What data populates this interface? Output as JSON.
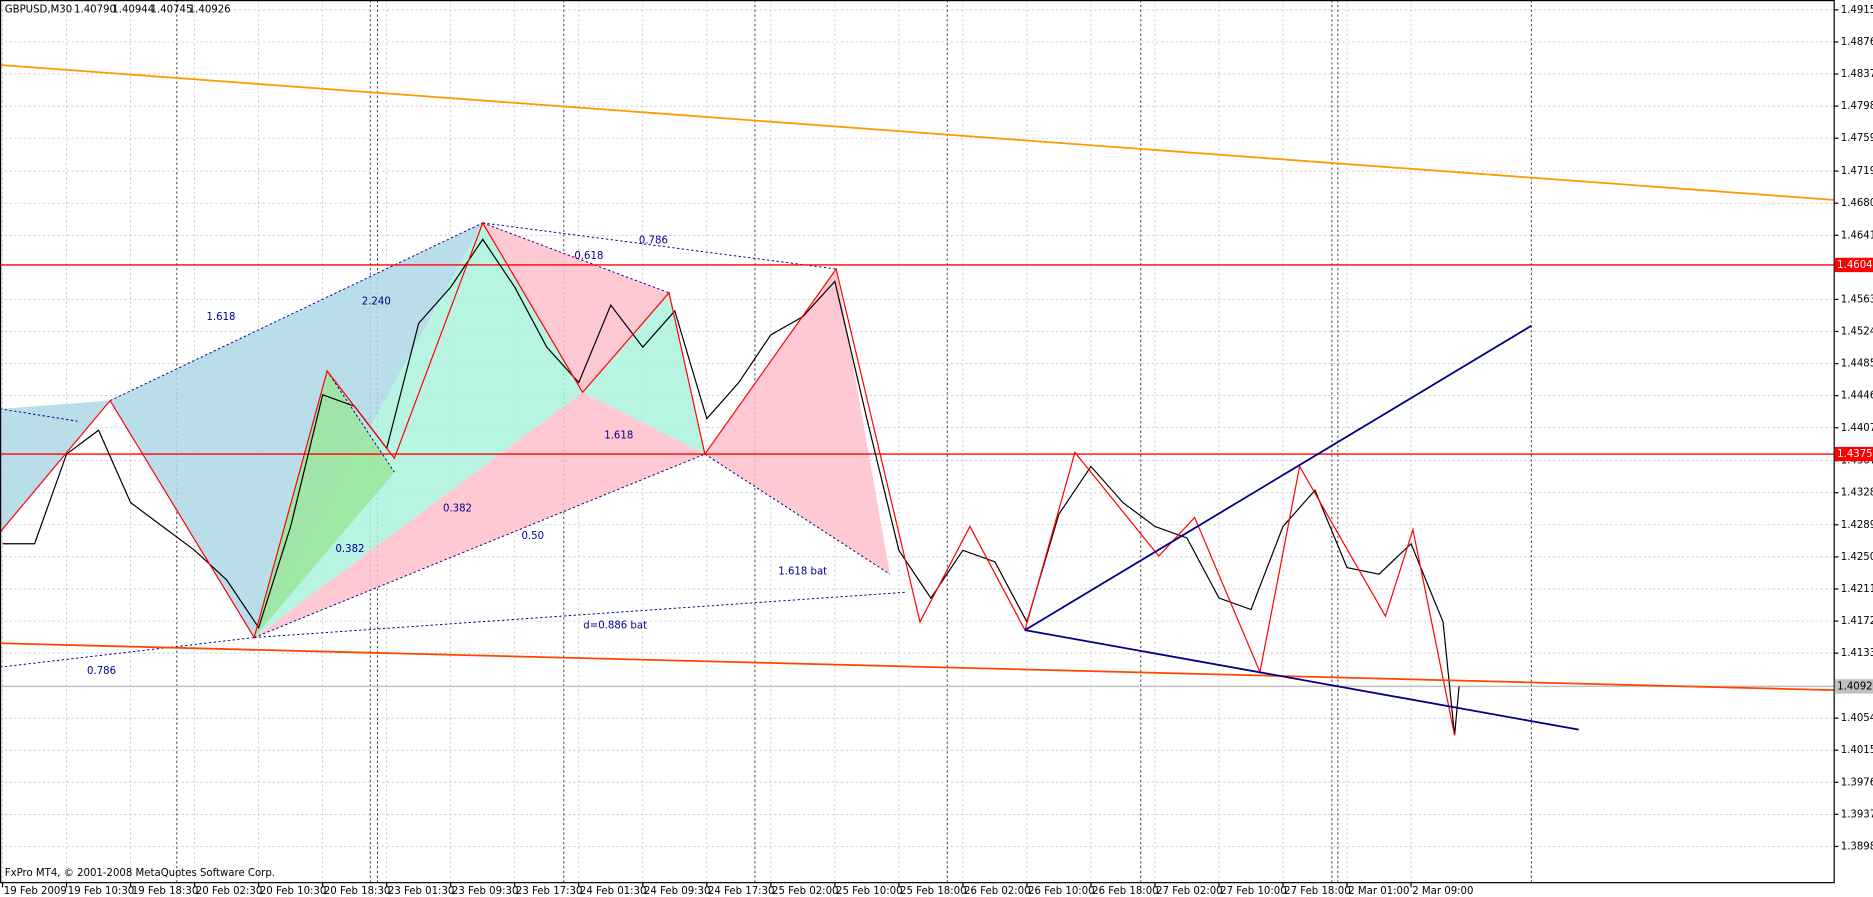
{
  "chart_data": {
    "type": "line",
    "title": "GBPUSD,M30",
    "quote": [
      "1.40790",
      "1.40944",
      "1.40745",
      "1.40926"
    ],
    "footer": "FxPro MT4, © 2001-2008 MetaQuotes Software Corp.",
    "grid": true,
    "xlim": [
      -0.04,
      28.6
    ],
    "ylim": [
      1.3854,
      1.4927
    ],
    "xticks": [
      {
        "value": 0,
        "label": "19 Feb 2009"
      },
      {
        "value": 1,
        "label": "19 Feb 10:30"
      },
      {
        "value": 2,
        "label": "19 Feb 18:30"
      },
      {
        "value": 3,
        "label": "20 Feb 02:30"
      },
      {
        "value": 4,
        "label": "20 Feb 10:30"
      },
      {
        "value": 5,
        "label": "20 Feb 18:30"
      },
      {
        "value": 6,
        "label": "23 Feb 01:30"
      },
      {
        "value": 7,
        "label": "23 Feb 09:30"
      },
      {
        "value": 8,
        "label": "23 Feb 17:30"
      },
      {
        "value": 9,
        "label": "24 Feb 01:30"
      },
      {
        "value": 10,
        "label": "24 Feb 09:30"
      },
      {
        "value": 11,
        "label": "24 Feb 17:30"
      },
      {
        "value": 12,
        "label": "25 Feb 02:00"
      },
      {
        "value": 13,
        "label": "25 Feb 10:00"
      },
      {
        "value": 14,
        "label": "25 Feb 18:00"
      },
      {
        "value": 15,
        "label": "26 Feb 02:00"
      },
      {
        "value": 16,
        "label": "26 Feb 10:00"
      },
      {
        "value": 17,
        "label": "26 Feb 18:00"
      },
      {
        "value": 18,
        "label": "27 Feb 02:00"
      },
      {
        "value": 19,
        "label": "27 Feb 10:00"
      },
      {
        "value": 20,
        "label": "27 Feb 18:00"
      },
      {
        "value": 21,
        "label": "2 Mar 01:00"
      },
      {
        "value": 22,
        "label": "2 Mar 09:00"
      }
    ],
    "yticks": [
      {
        "value": 1.4915,
        "label": "1.49150"
      },
      {
        "value": 1.4876,
        "label": "1.48760"
      },
      {
        "value": 1.4837,
        "label": "1.48370"
      },
      {
        "value": 1.4798,
        "label": "1.47980"
      },
      {
        "value": 1.4759,
        "label": "1.47590"
      },
      {
        "value": 1.4719,
        "label": "1.47190"
      },
      {
        "value": 1.468,
        "label": "1.46800"
      },
      {
        "value": 1.4641,
        "label": "1.46410"
      },
      {
        "value": 1.4563,
        "label": "1.45630"
      },
      {
        "value": 1.4524,
        "label": "1.45240"
      },
      {
        "value": 1.4485,
        "label": "1.44850"
      },
      {
        "value": 1.4446,
        "label": "1.44460"
      },
      {
        "value": 1.4407,
        "label": "1.44070"
      },
      {
        "value": 1.4367,
        "label": "1.43670"
      },
      {
        "value": 1.4328,
        "label": "1.43280"
      },
      {
        "value": 1.4289,
        "label": "1.42890"
      },
      {
        "value": 1.425,
        "label": "1.42500"
      },
      {
        "value": 1.4211,
        "label": "1.42110"
      },
      {
        "value": 1.4172,
        "label": "1.41720"
      },
      {
        "value": 1.4133,
        "label": "1.41330"
      },
      {
        "value": 1.4054,
        "label": "1.40540"
      },
      {
        "value": 1.4015,
        "label": "1.40150"
      },
      {
        "value": 1.3976,
        "label": "1.39760"
      },
      {
        "value": 1.3937,
        "label": "1.39370"
      },
      {
        "value": 1.3898,
        "label": "1.38980"
      }
    ],
    "series": [
      {
        "color": "#000000",
        "x": [
          0,
          0.5,
          1,
          1.5,
          2,
          2.5,
          3,
          3.5,
          4,
          4.5,
          5,
          5.5,
          6,
          6.5,
          7,
          7.5,
          8,
          8.5,
          9,
          9.5,
          10,
          10.5,
          11,
          11.5,
          12,
          12.5,
          13,
          13.5,
          14,
          14.5,
          15,
          15.5,
          16,
          16.5,
          17,
          17.5,
          18,
          18.5,
          19,
          19.5,
          20,
          20.5,
          21,
          21.5,
          22,
          22.5,
          22.68,
          22.75
        ],
        "values": [
          1.4266,
          1.4266,
          1.4375,
          1.4404,
          1.4316,
          1.4287,
          1.4258,
          1.4222,
          1.4164,
          1.4287,
          1.4447,
          1.4433,
          1.4382,
          1.4534,
          1.4578,
          1.4636,
          1.4578,
          1.4505,
          1.4462,
          1.4556,
          1.4505,
          1.4549,
          1.4418,
          1.4462,
          1.452,
          1.4542,
          1.4585,
          1.4418,
          1.4258,
          1.42,
          1.4258,
          1.4244,
          1.4171,
          1.4302,
          1.436,
          1.4316,
          1.4287,
          1.4273,
          1.42,
          1.4186,
          1.4287,
          1.4331,
          1.4237,
          1.4229,
          1.4266,
          1.4171,
          1.4033,
          1.40926
        ]
      }
    ],
    "levels": {
      "values": [
        1.46049,
        1.4375,
        1.40926
      ],
      "value_labels": [
        "1.46049",
        "1.43750",
        "1.40926"
      ],
      "colors": [
        "#ff0000",
        "#ff0000",
        "#c0c0c0"
      ]
    },
    "patterns": [
      {
        "color": "#add8e6",
        "points": [
          [
            -0.04,
            1.443
          ],
          [
            1.68,
            1.444
          ],
          [
            -0.04,
            1.428
          ]
        ]
      },
      {
        "color": "#add8e6",
        "points": [
          [
            1.68,
            1.444
          ],
          [
            7.5,
            1.4656
          ],
          [
            3.93,
            1.4152
          ]
        ]
      },
      {
        "color": "#aaf2dd",
        "points": [
          [
            3.93,
            1.4152
          ],
          [
            7.5,
            1.4656
          ],
          [
            9.06,
            1.445
          ]
        ]
      },
      {
        "color": "#9be59b",
        "points": [
          [
            3.93,
            1.4152
          ],
          [
            5.07,
            1.4476
          ],
          [
            6.12,
            1.4353
          ]
        ]
      },
      {
        "color": "#ffc0cb",
        "points": [
          [
            3.93,
            1.4152
          ],
          [
            9.06,
            1.445
          ],
          [
            10.97,
            1.4375
          ]
        ]
      },
      {
        "color": "#ffc0cb",
        "points": [
          [
            7.5,
            1.4656
          ],
          [
            10.41,
            1.4571
          ],
          [
            9.06,
            1.445
          ]
        ]
      },
      {
        "color": "#aaf2dd",
        "points": [
          [
            9.06,
            1.445
          ],
          [
            10.41,
            1.4571
          ],
          [
            10.97,
            1.4375
          ]
        ]
      },
      {
        "color": "#ffc0cb",
        "points": [
          [
            10.97,
            1.4375
          ],
          [
            13.02,
            1.46
          ],
          [
            13.86,
            1.4229
          ]
        ]
      }
    ],
    "zigzag": {
      "color": "#ff0000",
      "points": [
        [
          -0.04,
          1.428
        ],
        [
          1.68,
          1.444
        ],
        [
          3.93,
          1.4152
        ],
        [
          5.07,
          1.4476
        ],
        [
          6.12,
          1.437
        ],
        [
          7.5,
          1.4656
        ],
        [
          9.06,
          1.445
        ],
        [
          10.41,
          1.4571
        ],
        [
          10.97,
          1.4375
        ],
        [
          13.02,
          1.46
        ],
        [
          14.33,
          1.4171
        ],
        [
          15.11,
          1.4287
        ],
        [
          15.97,
          1.4161
        ],
        [
          16.75,
          1.4377
        ],
        [
          18.06,
          1.4251
        ],
        [
          18.62,
          1.4298
        ],
        [
          19.64,
          1.411
        ],
        [
          20.26,
          1.436
        ],
        [
          21.6,
          1.4178
        ],
        [
          22.03,
          1.4283
        ],
        [
          22.68,
          1.4033
        ]
      ]
    },
    "dotted_lines": [
      {
        "color": "#00008b",
        "points": [
          [
            -0.04,
            1.443
          ],
          [
            1.17,
            1.4415
          ]
        ]
      },
      {
        "color": "#00008b",
        "points": [
          [
            1.68,
            1.444
          ],
          [
            7.5,
            1.4656
          ]
        ]
      },
      {
        "color": "#00008b",
        "points": [
          [
            7.5,
            1.4656
          ],
          [
            13.02,
            1.46
          ]
        ]
      },
      {
        "color": "#00008b",
        "points": [
          [
            7.5,
            1.4656
          ],
          [
            10.41,
            1.4571
          ]
        ]
      },
      {
        "color": "#00008b",
        "points": [
          [
            3.93,
            1.4152
          ],
          [
            10.97,
            1.4375
          ]
        ]
      },
      {
        "color": "#00008b",
        "points": [
          [
            3.93,
            1.4152
          ],
          [
            14.1,
            1.4207
          ]
        ]
      },
      {
        "color": "#00008b",
        "points": [
          [
            10.97,
            1.4375
          ],
          [
            13.86,
            1.4229
          ]
        ]
      },
      {
        "color": "#00008b",
        "points": [
          [
            5.07,
            1.4476
          ],
          [
            6.12,
            1.4353
          ]
        ]
      },
      {
        "color": "#00008b",
        "points": [
          [
            -0.04,
            1.4116
          ],
          [
            3.93,
            1.4152
          ]
        ]
      }
    ],
    "trendlines": [
      {
        "color": "#ff9900",
        "points": [
          [
            -0.04,
            1.4848
          ],
          [
            28.6,
            1.4684
          ]
        ]
      },
      {
        "color": "#ff4500",
        "points": [
          [
            -0.04,
            1.4145
          ],
          [
            28.6,
            1.4088
          ]
        ]
      },
      {
        "color": "#00008b",
        "points": [
          [
            15.97,
            1.4161
          ],
          [
            23.88,
            1.4531
          ]
        ]
      },
      {
        "color": "#00008b",
        "points": [
          [
            15.97,
            1.4161
          ],
          [
            24.62,
            1.404
          ]
        ]
      }
    ],
    "annotations": [
      "1.618",
      "2.240",
      "0.618",
      "0.786",
      "1.618",
      "0.382",
      "0.382",
      "0.50",
      "1.618 bat",
      "d=0.886 bat",
      "0.786"
    ]
  }
}
